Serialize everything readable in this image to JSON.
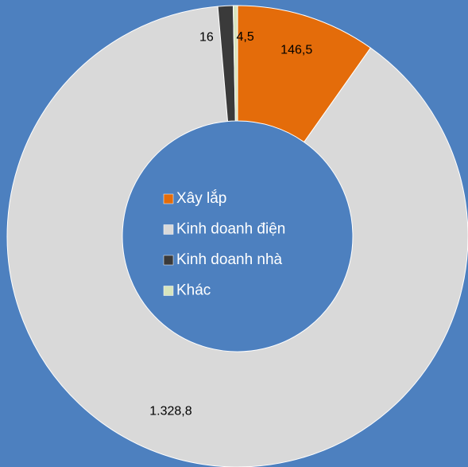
{
  "chart_data": {
    "type": "donut",
    "categories": [
      "Xây lắp",
      "Kinh doanh điện",
      "Kinh doanh nhà",
      "Khác"
    ],
    "values": [
      146.5,
      1328.8,
      16,
      4.5
    ],
    "value_labels": [
      "146,5",
      "1.328,8",
      "16",
      "4,5"
    ],
    "colors": [
      "#e46c0a",
      "#d9d9d9",
      "#3a3a3a",
      "#d7e4bd"
    ],
    "legend": "center"
  }
}
